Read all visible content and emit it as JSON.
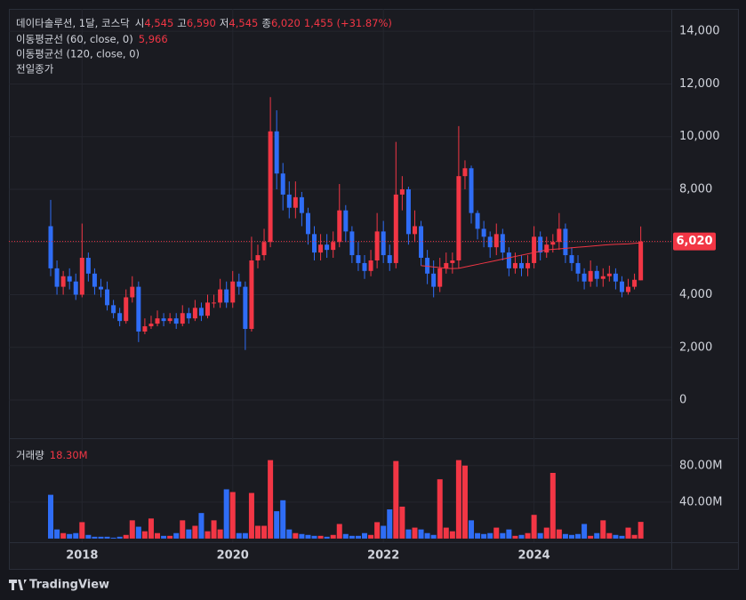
{
  "header": {
    "name": "데이타솔루션, 1달, 코스닥",
    "open_label": "시",
    "open": "4,545",
    "high_label": "고",
    "high": "6,590",
    "low_label": "저",
    "low": "4,545",
    "close_label": "종",
    "close": "6,020",
    "change": "1,455 (+31.87%)",
    "ma60_value": "5,966",
    "ma120": "이동평균선 (120, close, 0)",
    "prev_close": "전일종가",
    "volume_value": "18.30M"
  },
  "chart_data": [
    {
      "type": "candlestick",
      "categories": [
        null,
        null,
        null,
        null,
        null,
        "2018",
        null,
        null,
        null,
        null,
        null,
        null,
        null,
        null,
        null,
        null,
        null,
        null,
        null,
        null,
        null,
        null,
        null,
        null,
        null,
        null,
        null,
        null,
        null,
        "2020",
        null,
        null,
        null,
        null,
        null,
        null,
        null,
        null,
        null,
        null,
        null,
        null,
        null,
        null,
        null,
        null,
        null,
        null,
        null,
        null,
        null,
        null,
        null,
        "2022",
        null,
        null,
        null,
        null,
        null,
        null,
        null,
        null,
        null,
        null,
        null,
        null,
        null,
        null,
        null,
        null,
        null,
        null,
        null,
        null,
        null,
        null,
        null,
        "2024",
        null,
        null,
        null,
        null,
        null,
        null,
        null,
        null,
        null,
        null,
        null,
        null,
        null,
        null,
        null,
        null,
        null
      ],
      "open": [
        6600,
        5000,
        4300,
        4700,
        4500,
        4000,
        5400,
        4800,
        4300,
        4200,
        3600,
        3300,
        3000,
        3900,
        4300,
        2600,
        2800,
        2900,
        3100,
        3000,
        3100,
        2900,
        3300,
        3100,
        3500,
        3200,
        3700,
        3700,
        4200,
        3700,
        4500,
        4300,
        2700,
        5300,
        5500,
        6000,
        10200,
        8600,
        7800,
        7300,
        7700,
        7100,
        6300,
        5600,
        5900,
        5700,
        6000,
        7200,
        6400,
        5500,
        5200,
        4900,
        5300,
        6400,
        5500,
        5200,
        7800,
        8000,
        6300,
        6600,
        5400,
        4800,
        4300,
        5000,
        5200,
        5300,
        8500,
        8800,
        7100,
        6500,
        6200,
        5800,
        6300,
        5600,
        5000,
        5200,
        5000,
        5200,
        6200,
        5600,
        5900,
        6000,
        6500,
        5500,
        5200,
        4800,
        4500,
        4900,
        4600,
        4700,
        4800,
        4500,
        4100,
        4300,
        4545
      ],
      "high": [
        7600,
        5300,
        4900,
        5000,
        4800,
        6700,
        5600,
        5000,
        4600,
        4500,
        3800,
        3500,
        4200,
        4700,
        4500,
        3100,
        3200,
        3400,
        3300,
        3300,
        3300,
        3600,
        3500,
        3800,
        3700,
        4000,
        4000,
        4600,
        4500,
        4900,
        4800,
        4500,
        6200,
        5900,
        6500,
        11500,
        11000,
        9000,
        8300,
        8300,
        7900,
        7300,
        6600,
        6300,
        6300,
        6400,
        8200,
        7400,
        6600,
        6000,
        5500,
        5700,
        7100,
        6800,
        5900,
        9800,
        8500,
        8100,
        7200,
        6800,
        5700,
        5300,
        5400,
        5600,
        5600,
        10400,
        9100,
        8900,
        7200,
        6800,
        6400,
        6700,
        6500,
        5800,
        5600,
        5500,
        5500,
        6600,
        6400,
        6200,
        6300,
        7100,
        6700,
        5800,
        5500,
        5000,
        5300,
        5100,
        5000,
        5100,
        5000,
        4700,
        4600,
        4800,
        6590
      ],
      "low": [
        4700,
        4000,
        4000,
        4200,
        3800,
        3900,
        4500,
        4000,
        3900,
        3400,
        3100,
        2800,
        2900,
        3700,
        2200,
        2500,
        2700,
        2800,
        2800,
        2900,
        2700,
        2800,
        2900,
        3000,
        3000,
        3100,
        3500,
        3500,
        3500,
        3500,
        4000,
        1900,
        2600,
        5000,
        5300,
        5800,
        8000,
        7200,
        6900,
        6900,
        6600,
        5900,
        5300,
        5300,
        5400,
        5400,
        5800,
        6000,
        5200,
        4900,
        4600,
        4700,
        5000,
        5200,
        4900,
        5000,
        7200,
        5900,
        6000,
        5100,
        4400,
        3900,
        4100,
        4800,
        4800,
        5000,
        8000,
        6700,
        6100,
        5800,
        5400,
        5500,
        5300,
        4700,
        4800,
        4700,
        4700,
        5000,
        5300,
        5400,
        5600,
        5700,
        5200,
        4900,
        4500,
        4200,
        4300,
        4300,
        4300,
        4500,
        4200,
        3900,
        4000,
        4200,
        4545
      ],
      "close": [
        5000,
        4300,
        4700,
        4500,
        4000,
        5400,
        4800,
        4300,
        4200,
        3600,
        3300,
        3000,
        3900,
        4300,
        2600,
        2800,
        2900,
        3100,
        3000,
        3100,
        2900,
        3300,
        3100,
        3500,
        3200,
        3700,
        3700,
        4200,
        3700,
        4500,
        4300,
        2700,
        5300,
        5500,
        6000,
        10200,
        8600,
        7800,
        7300,
        7700,
        7100,
        6300,
        5600,
        5900,
        5700,
        6000,
        7200,
        6400,
        5500,
        5200,
        4900,
        5300,
        6400,
        5500,
        5200,
        7800,
        8000,
        6300,
        6600,
        5400,
        4800,
        4300,
        5000,
        5200,
        5300,
        8500,
        8800,
        7100,
        6500,
        6200,
        5800,
        6300,
        5600,
        5000,
        5200,
        5000,
        5200,
        6200,
        5600,
        5900,
        6000,
        6500,
        5500,
        5200,
        4800,
        4500,
        4900,
        4600,
        4700,
        4800,
        4500,
        4100,
        4300,
        4565,
        6020
      ],
      "up_color": "#f23645",
      "down_color": "#2f6df6",
      "series": [
        {
          "name": "이동평균선 (60, close, 0)",
          "color": "#f23645",
          "values": [
            null,
            null,
            null,
            null,
            null,
            null,
            null,
            null,
            null,
            null,
            null,
            null,
            null,
            null,
            null,
            null,
            null,
            null,
            null,
            null,
            null,
            null,
            null,
            null,
            null,
            null,
            null,
            null,
            null,
            null,
            null,
            null,
            null,
            null,
            null,
            null,
            null,
            null,
            null,
            null,
            null,
            null,
            null,
            null,
            null,
            null,
            null,
            null,
            null,
            null,
            null,
            null,
            null,
            null,
            null,
            null,
            null,
            null,
            null,
            5100,
            5080,
            5050,
            5030,
            5000,
            4990,
            5000,
            5050,
            5100,
            5150,
            5200,
            5250,
            5300,
            5350,
            5400,
            5450,
            5500,
            5550,
            5600,
            5650,
            5700,
            5720,
            5740,
            5760,
            5780,
            5800,
            5820,
            5840,
            5860,
            5880,
            5900,
            5910,
            5920,
            5930,
            5950,
            5966
          ]
        }
      ],
      "last_price_label": "6,020",
      "ylim": [
        -1450,
        14850
      ],
      "yticks": [
        0,
        {
          "value": 2000,
          "label": "2,000"
        },
        {
          "value": 4000,
          "label": "4,000"
        },
        {
          "value": 6000,
          "label": "6,000"
        },
        {
          "value": 8000,
          "label": "8,000"
        },
        {
          "value": 10000,
          "label": "10,000"
        },
        {
          "value": 12000,
          "label": "12,000"
        },
        {
          "value": 14000,
          "label": "14,000"
        }
      ],
      "grid": true
    },
    {
      "type": "bar",
      "title": "거래량",
      "values": [
        48000000,
        10000000,
        6000000,
        5000000,
        6000000,
        18000000,
        4000000,
        2000000,
        2000000,
        2000000,
        1000000,
        2000000,
        4000000,
        20000000,
        13000000,
        8000000,
        22000000,
        6000000,
        3000000,
        3000000,
        6000000,
        20000000,
        10000000,
        14000000,
        28000000,
        8000000,
        20000000,
        10000000,
        54000000,
        51000000,
        6000000,
        6000000,
        50000000,
        14000000,
        14000000,
        86000000,
        30000000,
        42000000,
        10000000,
        6000000,
        5000000,
        4000000,
        3000000,
        3000000,
        2000000,
        4000000,
        16000000,
        5000000,
        3000000,
        3000000,
        6000000,
        4000000,
        18000000,
        14000000,
        32000000,
        85000000,
        35000000,
        10000000,
        12000000,
        10000000,
        6000000,
        4000000,
        65000000,
        12000000,
        8000000,
        86000000,
        80000000,
        20000000,
        6000000,
        5000000,
        6000000,
        12000000,
        6000000,
        10000000,
        3000000,
        4000000,
        6000000,
        26000000,
        6000000,
        12000000,
        72000000,
        10000000,
        5000000,
        4000000,
        5000000,
        16000000,
        3000000,
        6000000,
        20000000,
        6000000,
        4000000,
        3000000,
        12000000,
        4000000,
        18300000
      ],
      "ylim": [
        -4000000,
        110000000
      ],
      "yticks": [
        {
          "value": 40000000,
          "label": "40.00M"
        },
        {
          "value": 80000000,
          "label": "80.00M"
        }
      ]
    },
    {
      "type": "brand",
      "title": "TradingView"
    }
  ]
}
